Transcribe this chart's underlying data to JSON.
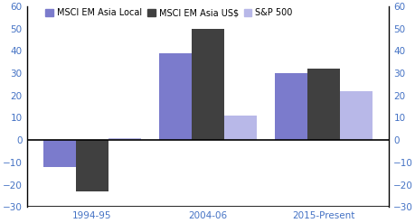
{
  "categories": [
    "1994-95",
    "2004-06",
    "2015-Present"
  ],
  "series": {
    "MSCI EM Asia Local": [
      -12,
      39,
      30
    ],
    "MSCI EM Asia US$": [
      -23,
      50,
      32
    ],
    "S&P 500": [
      1,
      11,
      22
    ]
  },
  "colors": {
    "MSCI EM Asia Local": "#7b7bcc",
    "MSCI EM Asia US$": "#404040",
    "S&P 500": "#b8b8e8"
  },
  "ylim": [
    -30,
    60
  ],
  "yticks": [
    -30,
    -20,
    -10,
    0,
    10,
    20,
    30,
    40,
    50,
    60
  ],
  "bar_width": 0.28,
  "background_color": "#ffffff",
  "tick_color": "#4472c4",
  "zero_line_color": "#000000",
  "bottom_line_color": "#000000",
  "left_spine_color": "#000000"
}
